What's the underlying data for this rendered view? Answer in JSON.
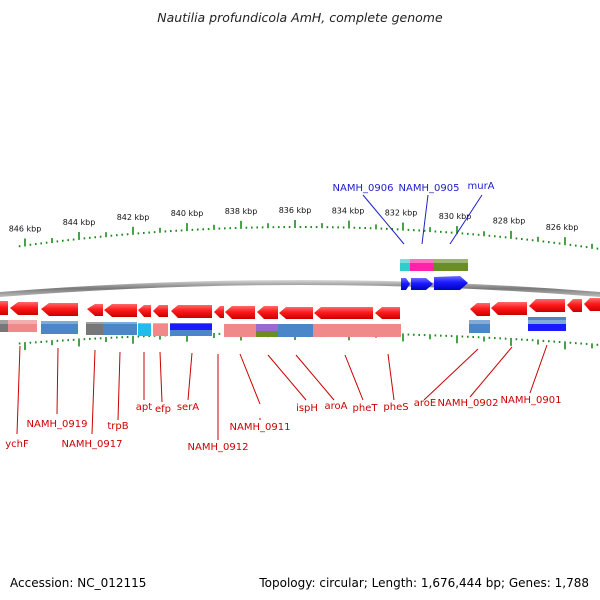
{
  "title": "Nautilia profundicola AmH, complete genome",
  "footer": {
    "accession": "Accession: NC_012115",
    "summary": "Topology: circular; Length: 1,676,444 bp; Genes: 1,788"
  },
  "colors": {
    "reverse_gene": "#ff1a1a",
    "forward_gene": "#1a1aff",
    "label_reverse": "#cc0000",
    "label_forward": "#1e1ec8",
    "tick": "#1a8a1a",
    "backbone": "#8c8c8c"
  },
  "ruler_labels": [
    "846 kbp",
    "844 kbp",
    "842 kbp",
    "840 kbp",
    "838 kbp",
    "836 kbp",
    "834 kbp",
    "832 kbp",
    "830 kbp",
    "828 kbp",
    "826 kbp"
  ],
  "forward_gene_labels": [
    "NAMH_0906",
    "NAMH_0905",
    "murA"
  ],
  "reverse_gene_labels": [
    "ychF",
    "NAMH_0919",
    "NAMH_0917",
    "trpB",
    "apt",
    "efp",
    "serA",
    "NAMH_0912",
    "NAMH_0911",
    "ispH",
    "aroA",
    "pheT",
    "pheS",
    "aroE",
    "NAMH_0902",
    "NAMH_0901"
  ]
}
